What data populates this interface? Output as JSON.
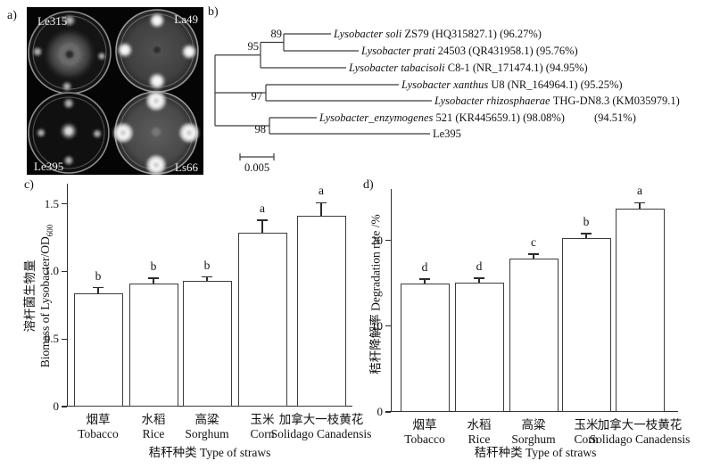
{
  "figure": {
    "panel_a_label": "a)",
    "panel_b_label": "b)",
    "panel_c_label": "c)",
    "panel_d_label": "d)"
  },
  "panel_a": {
    "description": "petri-dish-photo",
    "dish_labels": [
      "Le315",
      "La49",
      "Le395",
      "Ls66"
    ]
  },
  "panel_b": {
    "type": "phylogenetic-tree",
    "bootstrap_values": [
      "89",
      "95",
      "97",
      "98"
    ],
    "scale_bar_label": "0.005",
    "leaves": [
      {
        "italic": "Lysobacter soli",
        "rest": " ZS79 (HQ315827.1) (96.27%)"
      },
      {
        "italic": "Lysobacter prati",
        "rest": " 24503 (QR431958.1) (95.76%)"
      },
      {
        "italic": "Lysobacter tabacisoli",
        "rest": " C8-1 (NR_171474.1) (94.95%)"
      },
      {
        "italic": "Lysobacter xanthus",
        "rest": " U8 (NR_164964.1) (95.25%)"
      },
      {
        "italic": "Lysobacter rhizosphaerae",
        "rest": " THG-DN8.3 (KM035979.1)",
        "rest2": "(94.51%)"
      },
      {
        "italic": "Lysobacter_enzymogenes",
        "rest": " 521 (KR445659.1) (98.08%)"
      },
      {
        "italic": "",
        "rest": "Le395"
      }
    ]
  },
  "chart_data": [
    {
      "id": "c",
      "type": "bar",
      "categories_zh": [
        "烟草",
        "水稻",
        "高粱",
        "玉米",
        "加拿大一枝黄花"
      ],
      "categories_en": [
        "Tobacco",
        "Rice",
        "Sorghum",
        "Corn",
        "Solidago Canadensis"
      ],
      "values": [
        0.84,
        0.91,
        0.93,
        1.29,
        1.41
      ],
      "errors": [
        0.04,
        0.04,
        0.03,
        0.09,
        0.1
      ],
      "sig_letters": [
        "b",
        "b",
        "b",
        "a",
        "a"
      ],
      "ylabel_zh": "溶杆菌生物量",
      "ylabel_en": "Biomass of Lysobacter/OD",
      "ylabel_sub": "600",
      "xlabel": "秸秆种类 Type of straws",
      "yticks": [
        0,
        0.5,
        1.0,
        1.5
      ],
      "ytick_labels": [
        "0",
        "0.5",
        "1.0",
        "1.5"
      ],
      "ylim": [
        0,
        1.65
      ],
      "grid": false,
      "legend": "none"
    },
    {
      "id": "d",
      "type": "bar",
      "categories_zh": [
        "烟草",
        "水稻",
        "高粱",
        "玉米",
        "加拿大一枝黄花"
      ],
      "categories_en": [
        "Tobacco",
        "Rice",
        "Sorghum",
        "Corn",
        "Solidago Canadensis"
      ],
      "values": [
        15.0,
        15.1,
        17.9,
        20.3,
        23.7
      ],
      "errors": [
        0.5,
        0.5,
        0.5,
        0.5,
        0.7
      ],
      "sig_letters": [
        "d",
        "d",
        "c",
        "b",
        "a"
      ],
      "ylabel_zh": "秸秆降解率",
      "ylabel_en": " Degradation rate /%",
      "ylabel_sub": "",
      "xlabel": "秸秆种类 Type of straws",
      "yticks": [
        0,
        10,
        20
      ],
      "ytick_labels": [
        "0",
        "10",
        "20"
      ],
      "ylim": [
        0,
        26
      ],
      "grid": false,
      "legend": "none"
    }
  ]
}
